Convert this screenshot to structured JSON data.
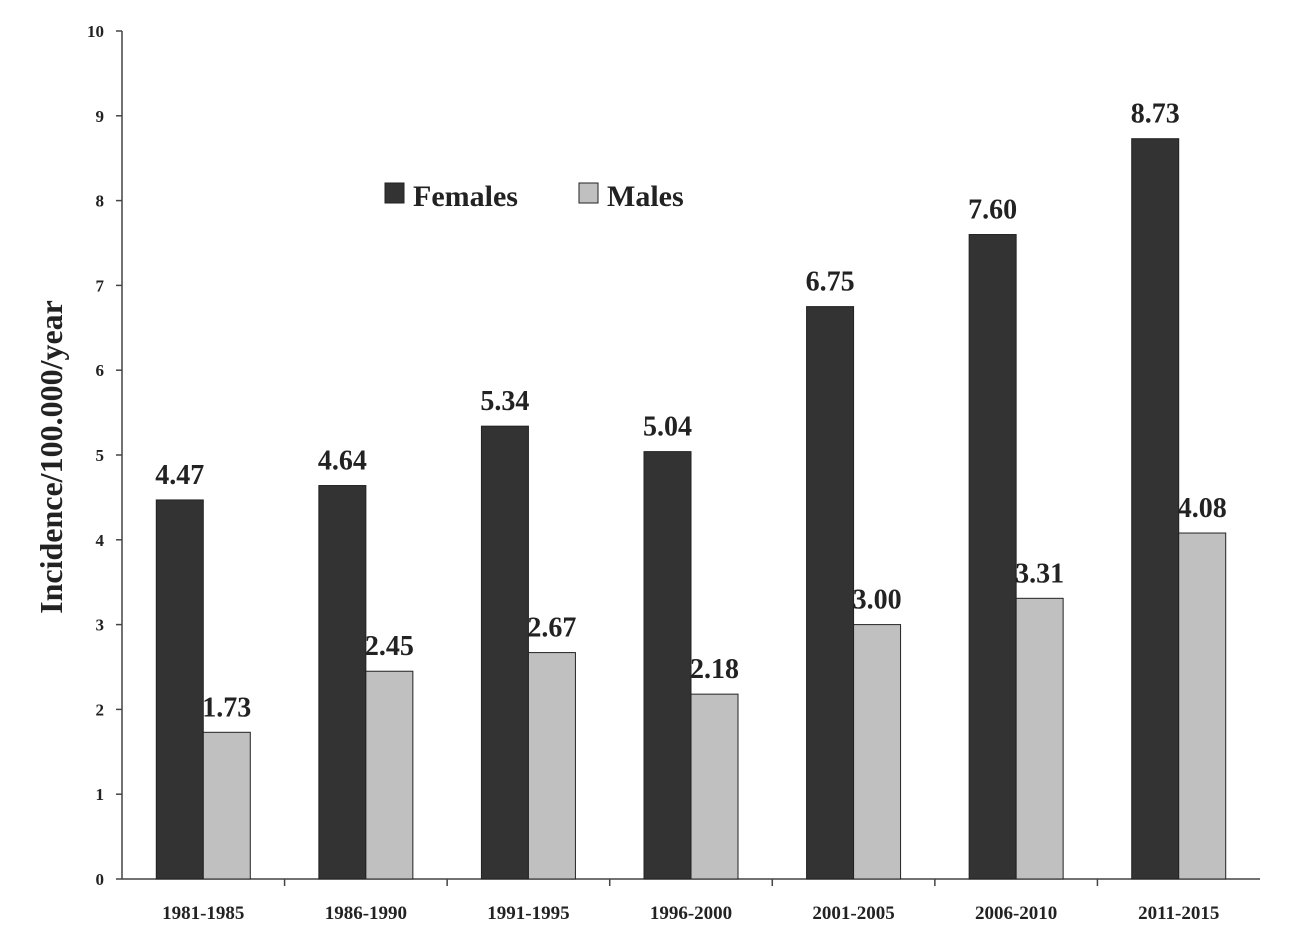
{
  "chart_data": {
    "type": "bar",
    "title": "",
    "xlabel": "",
    "ylabel": "Incidence/100.000/year",
    "ylim": [
      0,
      10
    ],
    "yticks": [
      0,
      1,
      2,
      3,
      4,
      5,
      6,
      7,
      8,
      9,
      10
    ],
    "categories": [
      "1981-1985",
      "1986-1990",
      "1991-1995",
      "1996-2000",
      "2001-2005",
      "2006-2010",
      "2011-2015"
    ],
    "series": [
      {
        "name": "Females",
        "color": "#333333",
        "values": [
          4.47,
          4.64,
          5.34,
          5.04,
          6.75,
          7.6,
          8.73
        ],
        "labels": [
          "4.47",
          "4.64",
          "5.34",
          "5.04",
          "6.75",
          "7.60",
          "8.73"
        ]
      },
      {
        "name": "Males",
        "color": "#c0c0c0",
        "values": [
          1.73,
          2.45,
          2.67,
          2.18,
          3.0,
          3.31,
          4.08
        ],
        "labels": [
          "1.73",
          "2.45",
          "2.67",
          "2.18",
          "3.00",
          "3.31",
          "4.08"
        ]
      }
    ],
    "legend_position": "top-center",
    "grid": false
  }
}
